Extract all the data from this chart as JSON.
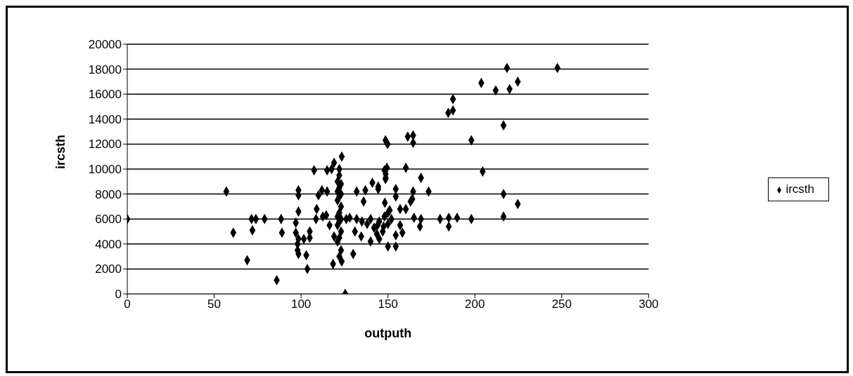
{
  "chart_data": {
    "type": "scatter",
    "xlabel": "outputh",
    "ylabel": "ircsth",
    "x": [
      0,
      57,
      61,
      71.5,
      74,
      79,
      72,
      69,
      88.5,
      89,
      86,
      98.5,
      98.5,
      98.5,
      97,
      97,
      98.5,
      98,
      98,
      98.5,
      103,
      103.6,
      105,
      105,
      101.6,
      107.5,
      109,
      110,
      112,
      108.6,
      112.5,
      114.5,
      115,
      116.4,
      117.6,
      119,
      123.4,
      115,
      122,
      122,
      121,
      123,
      122,
      121,
      123,
      122,
      121,
      123,
      122,
      121,
      123,
      122,
      121,
      123,
      122,
      121,
      123,
      122,
      118.4,
      123.4,
      125.4,
      130,
      119,
      131,
      134.6,
      136,
      132,
      137,
      141,
      144.4,
      148.6,
      148,
      148.6,
      218.5,
      247.5,
      203.7,
      212,
      220,
      224.7,
      187.4,
      184.7,
      187.4,
      216.5,
      198,
      149.8,
      161.4,
      164.5,
      164.5,
      204.5,
      160.3,
      149.4,
      148.7,
      148.7,
      169,
      173.4,
      164.5,
      144.4,
      154.5,
      154.5,
      164,
      163,
      216.5,
      224.7,
      148.2,
      157,
      160.3,
      165,
      169,
      168.4,
      180,
      185,
      185,
      189.8,
      198,
      216.5,
      150,
      154.5,
      154.5,
      158.3,
      157,
      147.5,
      143.6,
      140,
      145,
      142,
      147,
      145,
      148,
      150,
      152,
      138,
      135,
      132,
      128,
      126,
      140,
      144,
      150,
      151
    ],
    "series": [
      {
        "name": "ircsth",
        "color": "#000000",
        "values": [
          6000,
          8200,
          4900,
          6000,
          6000,
          6000,
          5100,
          2700,
          6000,
          4900,
          1100,
          8300,
          7900,
          6600,
          5700,
          4900,
          4400,
          4000,
          3500,
          3200,
          3100,
          2000,
          5000,
          4500,
          4400,
          9900,
          6800,
          7900,
          8300,
          6000,
          6200,
          6300,
          9900,
          5500,
          10000,
          10500,
          11000,
          8200,
          10000,
          9500,
          9000,
          8800,
          8500,
          8200,
          8000,
          7800,
          7500,
          7000,
          6500,
          6200,
          6000,
          5800,
          5500,
          5000,
          4500,
          4200,
          3500,
          3000,
          2400,
          2600,
          0,
          3200,
          4600,
          5000,
          4600,
          7400,
          8200,
          8300,
          8900,
          8600,
          12300,
          9900,
          9200,
          18100,
          18100,
          16900,
          16300,
          16400,
          17000,
          15600,
          14500,
          14700,
          13500,
          12300,
          12000,
          12600,
          12700,
          12100,
          9800,
          10100,
          10100,
          9600,
          9300,
          9300,
          8200,
          8200,
          8400,
          8400,
          7800,
          7600,
          7400,
          8000,
          7200,
          7300,
          6800,
          6800,
          6100,
          6000,
          5400,
          6000,
          6100,
          5400,
          6100,
          6000,
          6200,
          3800,
          3800,
          4700,
          4900,
          5500,
          5400,
          4800,
          4200,
          4400,
          5300,
          5000,
          5800,
          6200,
          6500,
          6000,
          5600,
          5800,
          6000,
          6100,
          6000,
          6000,
          5500,
          5600,
          6700
        ]
      }
    ],
    "xlim": [
      0,
      300
    ],
    "xticks": [
      0,
      50,
      100,
      150,
      200,
      250,
      300
    ],
    "ylim": [
      0,
      20000
    ],
    "yticks": [
      0,
      2000,
      4000,
      6000,
      8000,
      10000,
      12000,
      14000,
      16000,
      18000,
      20000
    ],
    "grid": "y",
    "legend": "right",
    "marker": "diamond"
  }
}
